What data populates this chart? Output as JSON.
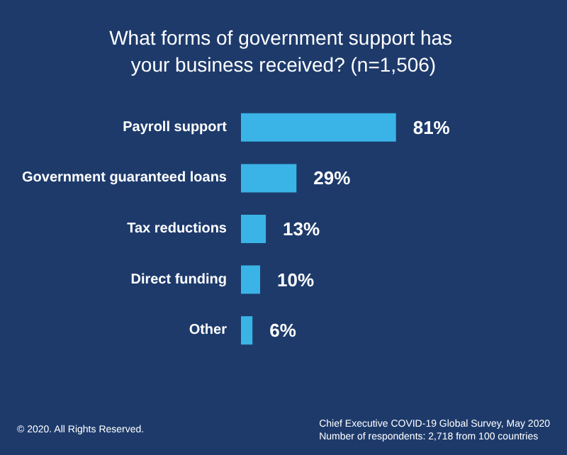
{
  "chart_data": {
    "type": "bar",
    "orientation": "horizontal",
    "title": "What forms of government support has your business received? (n=1,506)",
    "categories": [
      "Payroll support",
      "Government guaranteed loans",
      "Tax reductions",
      "Direct funding",
      "Other"
    ],
    "values": [
      81,
      29,
      13,
      10,
      6
    ],
    "value_labels": [
      "81%",
      "29%",
      "13%",
      "10%",
      "6%"
    ],
    "color": "#3ab4e6",
    "annotations": [
      "© 2020. All Rights Reserved.",
      "Chief Executive COVID-19 Global Survey, May 2020",
      "Number of respondents: 2,718 from 100 countries"
    ]
  }
}
